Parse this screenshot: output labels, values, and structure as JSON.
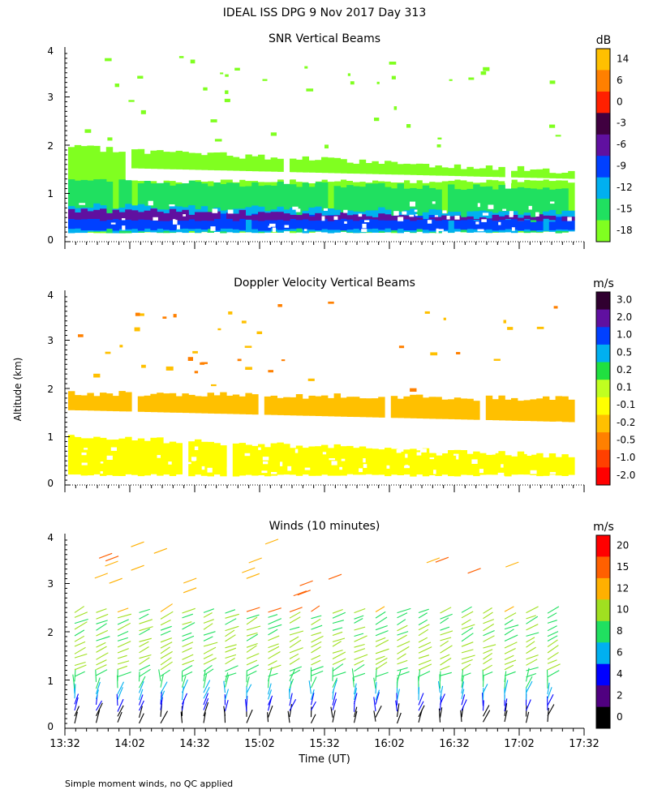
{
  "header": {
    "title": "IDEAL ISS DPG   9 Nov 2017 Day 313",
    "y_axis_label": "Altitude (km)",
    "x_axis_label": "Time (UT)",
    "footnote": "Simple moment winds, no QC applied"
  },
  "chart_data": [
    {
      "type": "heatmap",
      "title": "SNR Vertical Beams",
      "ylim": [
        0,
        4
      ],
      "yticks": [
        "0",
        "1",
        "2",
        "3",
        "4"
      ],
      "colorbar": {
        "unit": "dB",
        "labels": [
          "14",
          "6",
          "0",
          "-3",
          "-6",
          "-9",
          "-12",
          "-15",
          "-18"
        ],
        "colors": [
          "#ffc000",
          "#ff8000",
          "#ff2000",
          "#400040",
          "#6010a0",
          "#0040ff",
          "#00b0f0",
          "#20e060",
          "#80ff20"
        ]
      },
      "layers": [
        {
          "color": "#80ff20",
          "from": 0.2,
          "to": 1.95
        },
        {
          "color": "#20e060",
          "from": 0.2,
          "to": 1.25
        },
        {
          "color": "#00b0f0",
          "from": 0.2,
          "to": 0.75
        },
        {
          "color": "#0040ff",
          "from": 0.25,
          "to": 0.6
        },
        {
          "color": "#6010a0",
          "from": 0.45,
          "to": 0.65
        }
      ]
    },
    {
      "type": "heatmap",
      "title": "Doppler Velocity Vertical Beams",
      "ylim": [
        0,
        4
      ],
      "yticks": [
        "0",
        "1",
        "2",
        "3",
        "4"
      ],
      "colorbar": {
        "unit": "m/s",
        "labels": [
          "3.0",
          "2.0",
          "1.0",
          "0.5",
          "0.2",
          "0.1",
          "-0.1",
          "-0.2",
          "-0.5",
          "-1.0",
          "-2.0"
        ],
        "colors": [
          "#300030",
          "#6010a0",
          "#0040ff",
          "#00b0f0",
          "#20e040",
          "#c0ff20",
          "#ffff00",
          "#ffc000",
          "#ff8000",
          "#ff4000",
          "#ff0000"
        ]
      },
      "layers": [
        {
          "color": "#ffff00",
          "from": 0.2,
          "to": 1.0
        },
        {
          "color": "#ffc000",
          "from": 1.3,
          "to": 1.9
        }
      ]
    },
    {
      "type": "wind_barbs",
      "title": "Winds (10 minutes)",
      "ylim": [
        0,
        4
      ],
      "yticks": [
        "0",
        "1",
        "2",
        "3",
        "4"
      ],
      "x_tick_labels": [
        "13:32",
        "14:02",
        "14:32",
        "15:02",
        "15:32",
        "16:02",
        "16:32",
        "17:02",
        "17:32"
      ],
      "colorbar": {
        "unit": "m/s",
        "labels": [
          "20",
          "15",
          "12",
          "10",
          "8",
          "6",
          "4",
          "2",
          "0"
        ],
        "colors": [
          "#ff0000",
          "#ff6000",
          "#ffb000",
          "#a0e020",
          "#20e060",
          "#00b0f0",
          "#0000ff",
          "#500080",
          "#000000"
        ]
      }
    }
  ]
}
